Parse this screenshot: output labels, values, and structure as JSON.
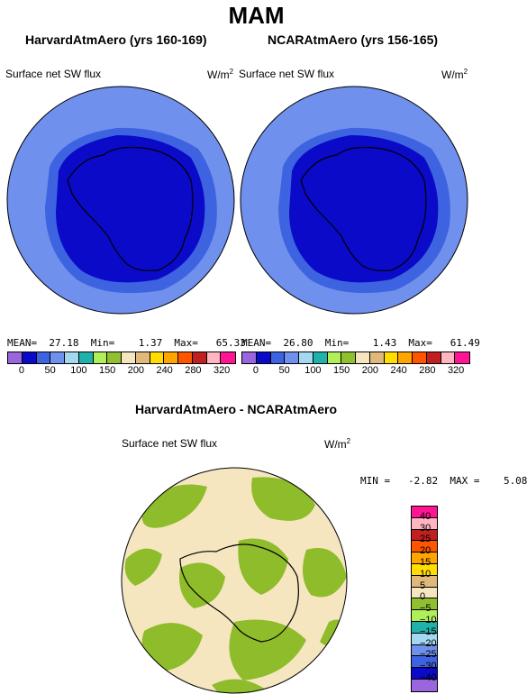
{
  "main_title": "MAM",
  "panels": {
    "left": {
      "title": "HarvardAtmAero (yrs 160-169)",
      "variable": "Surface net SW flux",
      "units_base": "W/m",
      "units_exp": "2",
      "stats": "MEAN=  27.18  Min=    1.37  Max=   65.33"
    },
    "right": {
      "title": "NCARAtmAero (yrs 156-165)",
      "variable": "Surface net SW flux",
      "units_base": "W/m",
      "units_exp": "2",
      "stats": "MEAN=  26.80  Min=    1.43  Max=   61.49"
    },
    "diff": {
      "title": "HarvardAtmAero - NCARAtmAero",
      "variable": "Surface net SW flux",
      "units_base": "W/m",
      "units_exp": "2",
      "stats": "MIN =   -2.82  MAX =    5.08"
    }
  },
  "colors": {
    "ocean_outer": "#6f90ec",
    "ocean_inner": "#3d63e0",
    "land": "#0a0ac8",
    "diff_bg": "#f5e6c0",
    "diff_neg": "#8fbc2a"
  },
  "chart_data": [
    {
      "type": "heatmap",
      "title": "HarvardAtmAero (yrs 160-169)",
      "variable": "Surface net SW flux",
      "units": "W/m2",
      "mean": 27.18,
      "min": 1.37,
      "max": 65.33,
      "levels": [
        0,
        50,
        100,
        150,
        200,
        240,
        280,
        320
      ]
    },
    {
      "type": "heatmap",
      "title": "NCARAtmAero (yrs 156-165)",
      "variable": "Surface net SW flux",
      "units": "W/m2",
      "mean": 26.8,
      "min": 1.43,
      "max": 61.49,
      "levels": [
        0,
        50,
        100,
        150,
        200,
        240,
        280,
        320
      ]
    },
    {
      "type": "heatmap",
      "title": "HarvardAtmAero - NCARAtmAero",
      "variable": "Surface net SW flux",
      "units": "W/m2",
      "min": -2.82,
      "max": 5.08,
      "levels": [
        40,
        30,
        25,
        20,
        15,
        10,
        5,
        0,
        -5,
        -10,
        -15,
        -20,
        -25,
        -30,
        -40
      ]
    }
  ],
  "colorbar_top": {
    "colors": [
      "#9966dd",
      "#0a0ac8",
      "#3d63e0",
      "#6f90ec",
      "#a4d8f0",
      "#20b2aa",
      "#b0ee5a",
      "#90c030",
      "#f5e6c0",
      "#e0b87a",
      "#ffdd00",
      "#ffa500",
      "#ff5500",
      "#c02020",
      "#ffb6c1",
      "#ff1493"
    ],
    "ticks": [
      "0",
      "50",
      "100",
      "150",
      "200",
      "240",
      "280",
      "320"
    ]
  },
  "colorbar_diff": {
    "colors": [
      "#ff1493",
      "#ffb6c1",
      "#c02020",
      "#ff5500",
      "#ffa500",
      "#ffdd00",
      "#e0b87a",
      "#f5e6c0",
      "#90c030",
      "#b0ee5a",
      "#20b2aa",
      "#a4d8f0",
      "#6f90ec",
      "#3d63e0",
      "#0a0ac8",
      "#9966dd"
    ],
    "ticks": [
      "40",
      "30",
      "25",
      "20",
      "15",
      "10",
      "5",
      "0",
      "−5",
      "−10",
      "−15",
      "−20",
      "−25",
      "−30",
      "−40"
    ]
  }
}
